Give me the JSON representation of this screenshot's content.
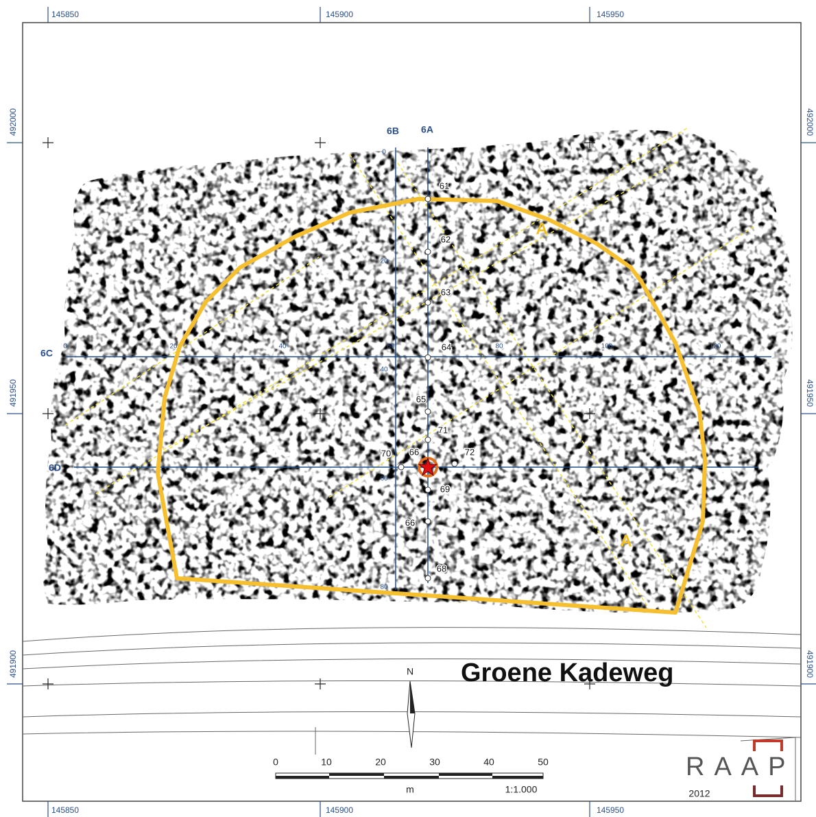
{
  "grid": {
    "x_labels": [
      "145850",
      "145900",
      "145950"
    ],
    "y_labels": [
      "492000",
      "491950",
      "491900"
    ]
  },
  "profiles": [
    "6A",
    "6B",
    "6C",
    "6D"
  ],
  "profile_6c_chainage": [
    "0",
    "20",
    "40",
    "60",
    "80",
    "100",
    "120"
  ],
  "profile_6b_chainage": [
    "0",
    "20",
    "40",
    "60",
    "80"
  ],
  "points": [
    "61",
    "62",
    "63",
    "64",
    "65",
    "71",
    "70",
    "66",
    "72",
    "69",
    "66",
    "68"
  ],
  "zone_labels": [
    "A",
    "A"
  ],
  "street": "Groene Kadeweg",
  "north": "N",
  "scale": {
    "ticks": [
      "0",
      "10",
      "20",
      "30",
      "40",
      "50"
    ],
    "unit": "m",
    "ratio": "1:1.000"
  },
  "logo": {
    "name": "RAAP",
    "year": "2012"
  }
}
